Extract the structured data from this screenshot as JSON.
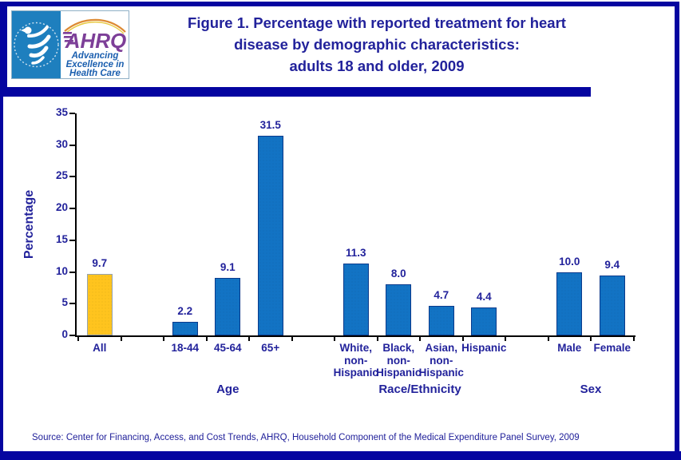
{
  "colors": {
    "navy_text": "#22229B",
    "frame_navy": "#0505A0",
    "bar_blue": "#1273C4",
    "bar_blue_border": "#0A3A8C",
    "bar_gold": "#FFC41E",
    "bar_gold_border": "#95A3B1",
    "hhs_blue": "#1E7FBE",
    "ahrq_purple": "#7D3F98",
    "tagline_blue": "#1B5FAF",
    "axis_black": "#000000"
  },
  "header": {
    "title_lines": [
      "Figure 1. Percentage with reported treatment for heart",
      "disease by demographic characteristics:",
      "adults 18 and older, 2009"
    ],
    "logo": {
      "name": "AHRQ",
      "tagline_lines": [
        "Advancing",
        "Excellence in",
        "Health Care"
      ]
    }
  },
  "chart_data": {
    "type": "bar",
    "title": "Figure 1. Percentage with reported treatment for heart disease by demographic characteristics: adults 18 and older, 2009",
    "xlabel": "",
    "ylabel": "Percentage",
    "ylim": [
      0,
      35
    ],
    "ytick_step": 5,
    "grid": false,
    "legend": "none",
    "default_bar_color": "#1273C4",
    "default_bar_border": "#0A3A8C",
    "groups": [
      {
        "label": "",
        "bars": [
          {
            "category": "All",
            "category_lines": [
              "All"
            ],
            "value": 9.7,
            "value_label": "9.7",
            "color": "#FFC41E",
            "border": "#95A3B1"
          }
        ]
      },
      {
        "label": "Age",
        "bars": [
          {
            "category": "18-44",
            "category_lines": [
              "18-44"
            ],
            "value": 2.2,
            "value_label": "2.2"
          },
          {
            "category": "45-64",
            "category_lines": [
              "45-64"
            ],
            "value": 9.1,
            "value_label": "9.1"
          },
          {
            "category": "65+",
            "category_lines": [
              "65+"
            ],
            "value": 31.5,
            "value_label": "31.5"
          }
        ]
      },
      {
        "label": "Race/Ethnicity",
        "bars": [
          {
            "category": "White, non-Hispanic",
            "category_lines": [
              "White,",
              "non-",
              "Hispanic"
            ],
            "value": 11.3,
            "value_label": "11.3"
          },
          {
            "category": "Black, non-Hispanic",
            "category_lines": [
              "Black,",
              "non-",
              "Hispanic"
            ],
            "value": 8.0,
            "value_label": "8.0"
          },
          {
            "category": "Asian, non-Hispanic",
            "category_lines": [
              "Asian,",
              "non-",
              "Hispanic"
            ],
            "value": 4.7,
            "value_label": "4.7"
          },
          {
            "category": "Hispanic",
            "category_lines": [
              "Hispanic"
            ],
            "value": 4.4,
            "value_label": "4.4"
          }
        ]
      },
      {
        "label": "Sex",
        "bars": [
          {
            "category": "Male",
            "category_lines": [
              "Male"
            ],
            "value": 10.0,
            "value_label": "10.0"
          },
          {
            "category": "Female",
            "category_lines": [
              "Female"
            ],
            "value": 9.4,
            "value_label": "9.4"
          }
        ]
      }
    ]
  },
  "footer": {
    "source": "Source: Center for Financing, Access, and Cost Trends, AHRQ, Household Component of the Medical Expenditure Panel Survey, 2009"
  }
}
